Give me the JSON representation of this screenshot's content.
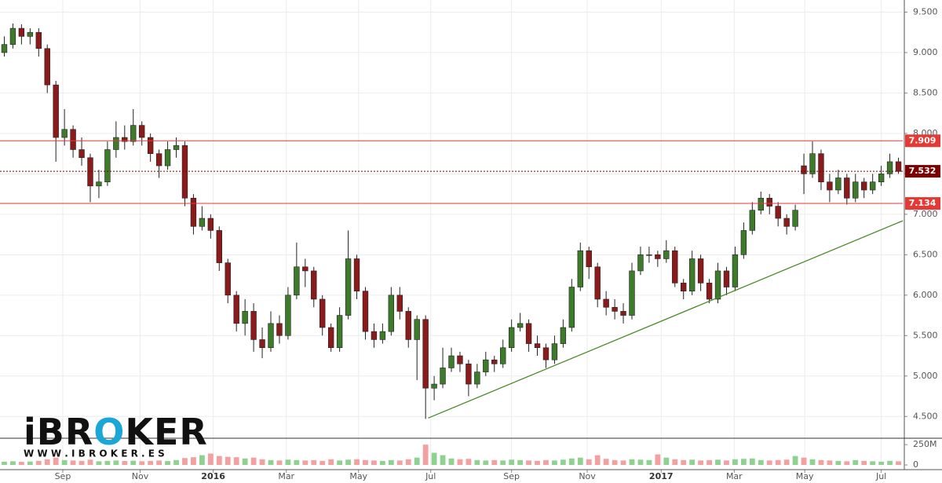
{
  "chart_data": {
    "type": "candlestick",
    "xlim": [
      0,
      105
    ],
    "xticks": [
      {
        "value": 7.3,
        "label": "Sep"
      },
      {
        "value": 16.3,
        "label": "Nov"
      },
      {
        "value": 24.8,
        "label": "2016"
      },
      {
        "value": 33.3,
        "label": "Mar"
      },
      {
        "value": 41.7,
        "label": "May"
      },
      {
        "value": 50.1,
        "label": "Jul"
      },
      {
        "value": 59.5,
        "label": "Sep"
      },
      {
        "value": 68.3,
        "label": "Nov"
      },
      {
        "value": 76.9,
        "label": "2017"
      },
      {
        "value": 85.4,
        "label": "Mar"
      },
      {
        "value": 93.6,
        "label": "May"
      },
      {
        "value": 102.5,
        "label": "Jul"
      }
    ],
    "ylim": [
      4.25,
      9.65
    ],
    "yticks": [
      {
        "value": 4.5,
        "label": "4.500"
      },
      {
        "value": 5,
        "label": "5.000"
      },
      {
        "value": 5.5,
        "label": "5.500"
      },
      {
        "value": 6,
        "label": "6.000"
      },
      {
        "value": 6.5,
        "label": "6.500"
      },
      {
        "value": 7,
        "label": "7.000"
      },
      {
        "value": 7.5,
        "label": "7.500"
      },
      {
        "value": 8,
        "label": "8.000"
      },
      {
        "value": 8.5,
        "label": "8.500"
      },
      {
        "value": 9,
        "label": "9.000"
      },
      {
        "value": 9.5,
        "label": "9.500"
      }
    ],
    "grid": true,
    "up_color": "#3d7a2a",
    "down_color": "#8b1a1a",
    "volume_up_color": "#8fd18f",
    "volume_down_color": "#f2a0a0",
    "ohlc": [
      [
        9.0,
        9.2,
        8.95,
        9.1
      ],
      [
        9.1,
        9.36,
        9.05,
        9.3
      ],
      [
        9.3,
        9.35,
        9.1,
        9.2
      ],
      [
        9.2,
        9.3,
        9.1,
        9.25
      ],
      [
        9.25,
        9.3,
        8.95,
        9.05
      ],
      [
        9.05,
        9.1,
        8.5,
        8.6
      ],
      [
        8.6,
        8.65,
        7.65,
        7.95
      ],
      [
        7.95,
        8.3,
        7.85,
        8.05
      ],
      [
        8.05,
        8.1,
        7.7,
        7.8
      ],
      [
        7.8,
        7.95,
        7.6,
        7.7
      ],
      [
        7.7,
        7.75,
        7.15,
        7.35
      ],
      [
        7.35,
        7.55,
        7.2,
        7.4
      ],
      [
        7.4,
        7.9,
        7.35,
        7.8
      ],
      [
        7.8,
        8.15,
        7.7,
        7.95
      ],
      [
        7.95,
        8.1,
        7.8,
        7.9
      ],
      [
        7.9,
        8.3,
        7.85,
        8.1
      ],
      [
        8.1,
        8.15,
        7.85,
        7.95
      ],
      [
        7.95,
        8.0,
        7.65,
        7.75
      ],
      [
        7.75,
        7.8,
        7.45,
        7.6
      ],
      [
        7.6,
        7.9,
        7.55,
        7.8
      ],
      [
        7.8,
        7.95,
        7.7,
        7.85
      ],
      [
        7.85,
        7.9,
        7.1,
        7.2
      ],
      [
        7.2,
        7.25,
        6.75,
        6.85
      ],
      [
        6.85,
        7.1,
        6.8,
        6.95
      ],
      [
        6.95,
        7.0,
        6.7,
        6.8
      ],
      [
        6.8,
        6.85,
        6.3,
        6.4
      ],
      [
        6.4,
        6.45,
        5.9,
        6.0
      ],
      [
        6.0,
        6.05,
        5.55,
        5.65
      ],
      [
        5.65,
        5.95,
        5.5,
        5.8
      ],
      [
        5.8,
        5.9,
        5.3,
        5.45
      ],
      [
        5.45,
        5.6,
        5.22,
        5.35
      ],
      [
        5.35,
        5.8,
        5.3,
        5.65
      ],
      [
        5.65,
        5.75,
        5.4,
        5.5
      ],
      [
        5.5,
        6.1,
        5.45,
        6.0
      ],
      [
        6.0,
        6.65,
        5.95,
        6.35
      ],
      [
        6.35,
        6.45,
        6.1,
        6.3
      ],
      [
        6.3,
        6.35,
        5.85,
        5.95
      ],
      [
        5.95,
        6.0,
        5.5,
        5.6
      ],
      [
        5.6,
        5.65,
        5.3,
        5.35
      ],
      [
        5.35,
        5.85,
        5.3,
        5.75
      ],
      [
        5.75,
        6.8,
        5.7,
        6.45
      ],
      [
        6.45,
        6.5,
        5.95,
        6.05
      ],
      [
        6.05,
        6.1,
        5.45,
        5.55
      ],
      [
        5.55,
        5.65,
        5.35,
        5.45
      ],
      [
        5.45,
        5.65,
        5.4,
        5.55
      ],
      [
        5.55,
        6.1,
        5.5,
        6.0
      ],
      [
        6.0,
        6.1,
        5.7,
        5.8
      ],
      [
        5.8,
        5.85,
        5.35,
        5.45
      ],
      [
        5.45,
        5.75,
        4.95,
        5.7
      ],
      [
        5.7,
        5.75,
        4.47,
        4.85
      ],
      [
        4.85,
        5.0,
        4.7,
        4.9
      ],
      [
        4.9,
        5.35,
        4.85,
        5.1
      ],
      [
        5.1,
        5.35,
        5.05,
        5.25
      ],
      [
        5.25,
        5.3,
        5.05,
        5.15
      ],
      [
        5.15,
        5.2,
        4.75,
        4.9
      ],
      [
        4.9,
        5.15,
        4.85,
        5.05
      ],
      [
        5.05,
        5.3,
        5.0,
        5.2
      ],
      [
        5.2,
        5.25,
        5.05,
        5.15
      ],
      [
        5.15,
        5.45,
        5.1,
        5.35
      ],
      [
        5.35,
        5.7,
        5.3,
        5.6
      ],
      [
        5.6,
        5.78,
        5.55,
        5.65
      ],
      [
        5.65,
        5.7,
        5.3,
        5.4
      ],
      [
        5.4,
        5.5,
        5.25,
        5.35
      ],
      [
        5.35,
        5.4,
        5.1,
        5.2
      ],
      [
        5.2,
        5.5,
        5.15,
        5.4
      ],
      [
        5.4,
        5.7,
        5.35,
        5.6
      ],
      [
        5.6,
        6.2,
        5.55,
        6.1
      ],
      [
        6.1,
        6.65,
        6.05,
        6.55
      ],
      [
        6.55,
        6.6,
        6.2,
        6.35
      ],
      [
        6.35,
        6.4,
        5.85,
        5.95
      ],
      [
        5.95,
        6.05,
        5.75,
        5.85
      ],
      [
        5.85,
        5.95,
        5.7,
        5.8
      ],
      [
        5.8,
        5.9,
        5.65,
        5.75
      ],
      [
        5.75,
        6.4,
        5.7,
        6.3
      ],
      [
        6.3,
        6.6,
        6.25,
        6.5
      ],
      [
        6.5,
        6.6,
        6.4,
        6.5
      ],
      [
        6.5,
        6.55,
        6.35,
        6.45
      ],
      [
        6.45,
        6.68,
        6.4,
        6.55
      ],
      [
        6.55,
        6.6,
        6.1,
        6.15
      ],
      [
        6.15,
        6.2,
        5.95,
        6.05
      ],
      [
        6.05,
        6.55,
        6.0,
        6.45
      ],
      [
        6.45,
        6.5,
        6.05,
        6.15
      ],
      [
        6.15,
        6.2,
        5.9,
        5.95
      ],
      [
        5.95,
        6.4,
        5.9,
        6.3
      ],
      [
        6.3,
        6.35,
        6.0,
        6.1
      ],
      [
        6.1,
        6.6,
        6.05,
        6.5
      ],
      [
        6.5,
        6.9,
        6.45,
        6.8
      ],
      [
        6.8,
        7.15,
        6.75,
        7.05
      ],
      [
        7.05,
        7.28,
        7.0,
        7.2
      ],
      [
        7.2,
        7.25,
        7.0,
        7.1
      ],
      [
        7.1,
        7.15,
        6.85,
        6.95
      ],
      [
        6.95,
        7.0,
        6.75,
        6.85
      ],
      [
        6.85,
        7.12,
        6.8,
        7.05
      ],
      [
        7.6,
        7.75,
        7.25,
        7.5
      ],
      [
        7.5,
        7.9,
        7.45,
        7.75
      ],
      [
        7.75,
        7.8,
        7.3,
        7.4
      ],
      [
        7.4,
        7.5,
        7.15,
        7.3
      ],
      [
        7.3,
        7.55,
        7.25,
        7.45
      ],
      [
        7.45,
        7.5,
        7.12,
        7.2
      ],
      [
        7.2,
        7.5,
        7.15,
        7.4
      ],
      [
        7.4,
        7.45,
        7.2,
        7.3
      ],
      [
        7.3,
        7.5,
        7.25,
        7.4
      ],
      [
        7.4,
        7.6,
        7.35,
        7.5
      ],
      [
        7.5,
        7.75,
        7.45,
        7.65
      ],
      [
        7.65,
        7.7,
        7.5,
        7.53
      ]
    ],
    "volume": [
      40,
      45,
      38,
      42,
      50,
      70,
      90,
      60,
      55,
      50,
      65,
      45,
      50,
      55,
      48,
      52,
      45,
      50,
      55,
      48,
      60,
      85,
      95,
      120,
      140,
      110,
      100,
      95,
      80,
      90,
      70,
      60,
      55,
      65,
      60,
      55,
      60,
      50,
      70,
      55,
      65,
      70,
      60,
      55,
      50,
      60,
      55,
      70,
      90,
      250,
      150,
      120,
      80,
      70,
      75,
      60,
      55,
      60,
      55,
      65,
      60,
      55,
      50,
      60,
      55,
      65,
      80,
      90,
      70,
      120,
      75,
      60,
      55,
      70,
      65,
      60,
      130,
      90,
      70,
      60,
      65,
      55,
      60,
      65,
      55,
      70,
      75,
      80,
      60,
      55,
      60,
      65,
      110,
      90,
      70,
      60,
      55,
      50,
      45,
      60,
      50,
      45,
      40,
      50,
      45
    ],
    "volume_ylim": [
      0,
      300
    ],
    "volume_yticks": [
      0,
      {
        "value": 250,
        "label": "250M"
      }
    ],
    "levels": [
      {
        "value": 7.909,
        "color": "#e53935",
        "style": "solid"
      },
      {
        "value": 7.532,
        "color": "#7a0000",
        "style": "dotted"
      },
      {
        "value": 7.134,
        "color": "#e53935",
        "style": "solid"
      }
    ],
    "trendline": {
      "x": [
        49.8,
        105
      ],
      "y": [
        4.48,
        6.92
      ],
      "color": "#4a8a2a"
    }
  },
  "watermark": {
    "logo": [
      "iBR",
      "O",
      "KER"
    ],
    "url": "W W W . I B R O K E R . E S"
  }
}
